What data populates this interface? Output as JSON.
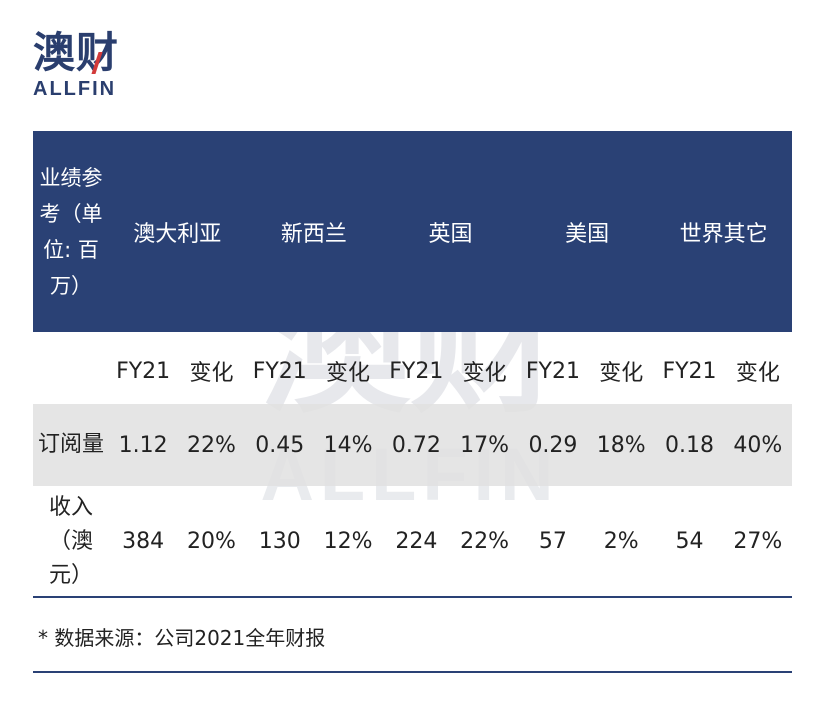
{
  "logo": {
    "cn": "澳财",
    "en": "ALLFIN"
  },
  "watermark": {
    "cn": "澳财",
    "en": "ALLFIN"
  },
  "table": {
    "corner_header": "业绩参考（单位: 百万）",
    "regions": [
      "澳大利亚",
      "新西兰",
      "英国",
      "美国",
      "世界其它"
    ],
    "sub_headers": [
      "FY21",
      "变化",
      "FY21",
      "变化",
      "FY21",
      "变化",
      "FY21",
      "变化",
      "FY21",
      "变化"
    ],
    "rows": [
      {
        "label": "订阅量",
        "values": [
          "1.12",
          "22%",
          "0.45",
          "14%",
          "0.72",
          "17%",
          "0.29",
          "18%",
          "0.18",
          "40%"
        ]
      },
      {
        "label": "收入（澳元）",
        "values": [
          "384",
          "20%",
          "130",
          "12%",
          "224",
          "22%",
          "57",
          "2%",
          "54",
          "27%"
        ]
      }
    ]
  },
  "footnote": "* 数据来源：公司2021全年财报",
  "colors": {
    "header_bg": "#2a4175",
    "brand": "#2a3e6e",
    "accent": "#d23a3a",
    "row_shade": "#e1e1e1"
  }
}
